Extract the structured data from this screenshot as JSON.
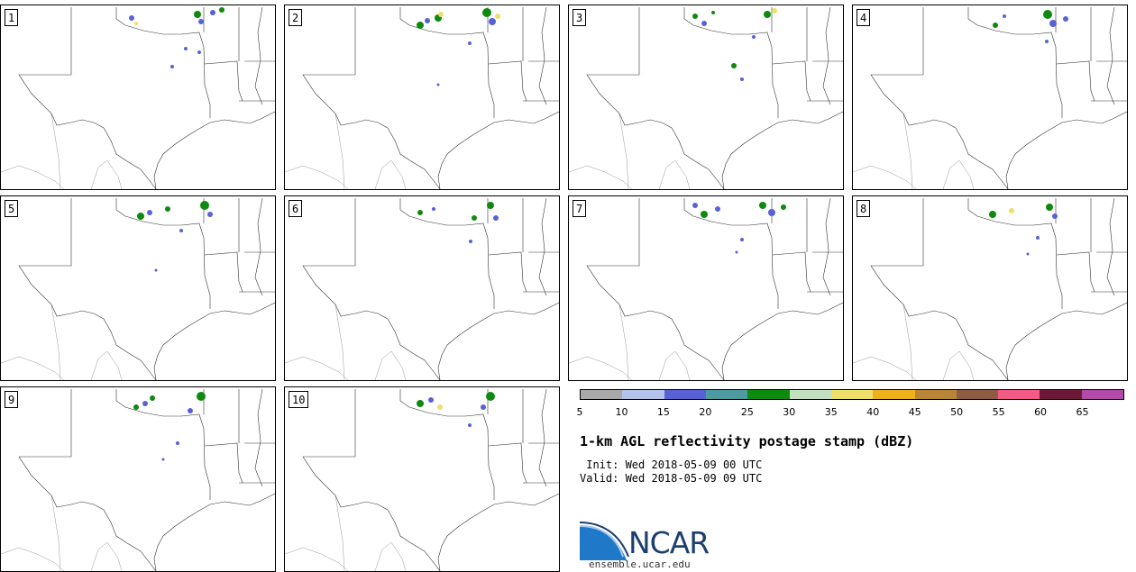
{
  "panels": [
    {
      "label": "1"
    },
    {
      "label": "2"
    },
    {
      "label": "3"
    },
    {
      "label": "4"
    },
    {
      "label": "5"
    },
    {
      "label": "6"
    },
    {
      "label": "7"
    },
    {
      "label": "8"
    },
    {
      "label": "9"
    },
    {
      "label": "10"
    }
  ],
  "colorbar": {
    "colors": [
      "#a9a9a9",
      "#b4c3ec",
      "#5861d6",
      "#4d9aa0",
      "#0e8a0e",
      "#c1e0c0",
      "#eddf6a",
      "#eeb11d",
      "#b98537",
      "#8e5c43",
      "#f45a86",
      "#6c1838",
      "#b24aa9"
    ],
    "ticks": [
      "5",
      "10",
      "15",
      "20",
      "25",
      "30",
      "35",
      "40",
      "45",
      "50",
      "55",
      "60",
      "65"
    ]
  },
  "title": "1-km AGL reflectivity postage stamp (dBZ)",
  "init": " Init: Wed 2018-05-09 00 UTC",
  "valid": "Valid: Wed 2018-05-09 09 UTC",
  "logo": {
    "text": "NCAR",
    "website": "ensemble.ucar.edu",
    "primary_color": "#1c3f6e",
    "accent_color": "#1f78c8"
  }
}
